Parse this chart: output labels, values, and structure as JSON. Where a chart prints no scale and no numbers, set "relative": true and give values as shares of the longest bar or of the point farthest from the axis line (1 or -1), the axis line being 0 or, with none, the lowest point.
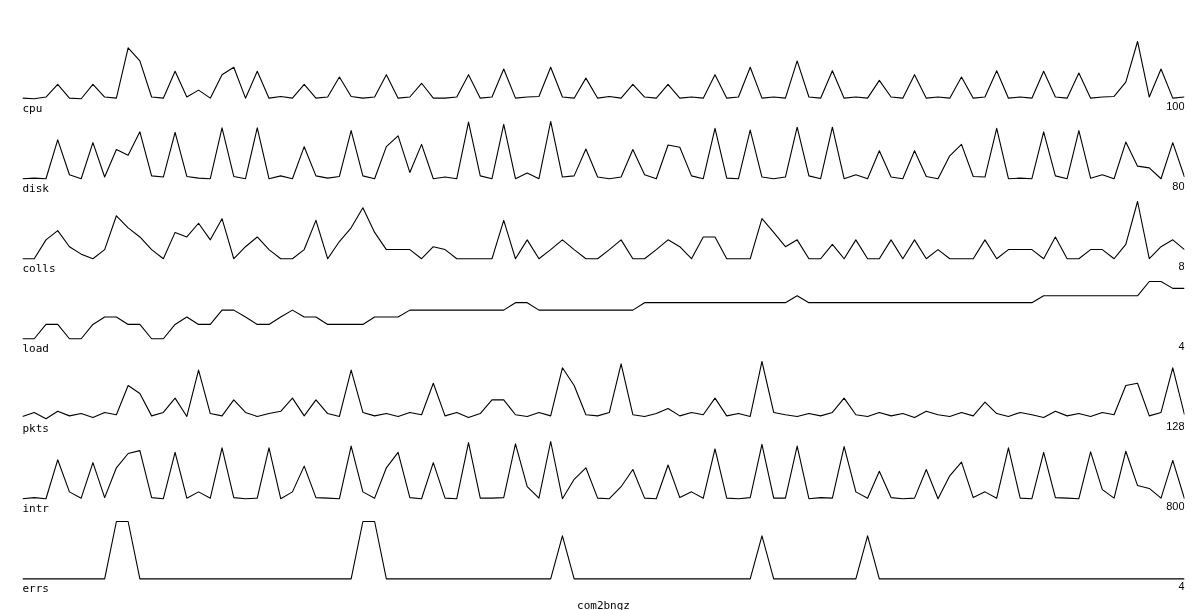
{
  "chart_data": [
    {
      "type": "line",
      "relative": true,
      "color": "#000000",
      "grid": false,
      "annotations": [
        "cpu",
        "100"
      ],
      "categories": [
        null,
        null,
        null,
        null,
        null,
        null,
        null,
        null,
        null,
        null,
        null,
        null,
        null,
        null,
        null,
        null,
        null,
        null,
        null,
        null,
        null,
        null,
        null,
        null,
        null,
        null,
        null,
        null,
        null,
        null,
        null,
        null,
        null,
        null,
        null,
        null,
        null,
        null,
        null,
        null,
        null,
        null,
        null,
        null,
        null,
        null,
        null,
        null,
        null,
        null,
        null,
        null,
        null,
        null,
        null,
        null,
        null,
        null,
        null,
        null,
        null,
        null,
        null,
        null,
        null,
        null,
        null,
        null,
        null,
        null,
        null,
        null,
        null,
        null,
        null,
        null,
        null,
        null,
        null,
        null,
        null,
        null,
        null,
        null,
        null,
        null,
        null,
        null,
        null,
        null,
        null,
        null,
        null,
        null,
        null,
        null,
        null,
        null,
        null,
        null
      ],
      "values": [
        0.01,
        0,
        0.03,
        0.25,
        0.01,
        0,
        0.25,
        0.03,
        0.01,
        0.89,
        0.66,
        0.03,
        0.01,
        0.48,
        0.03,
        0.15,
        0.01,
        0.42,
        0.55,
        0.01,
        0.48,
        0.01,
        0.04,
        0.01,
        0.25,
        0.01,
        0.03,
        0.38,
        0.04,
        0.01,
        0.03,
        0.42,
        0.01,
        0.03,
        0.27,
        0.01,
        0.01,
        0.03,
        0.42,
        0.01,
        0.03,
        0.52,
        0.01,
        0.03,
        0.04,
        0.55,
        0.03,
        0.01,
        0.36,
        0.01,
        0.04,
        0.01,
        0.25,
        0.03,
        0.01,
        0.25,
        0.01,
        0.03,
        0.01,
        0.42,
        0.01,
        0.03,
        0.55,
        0.01,
        0.03,
        0.01,
        0.66,
        0.03,
        0.01,
        0.49,
        0.01,
        0.03,
        0.01,
        0.32,
        0.03,
        0.01,
        0.42,
        0.01,
        0.03,
        0.01,
        0.38,
        0.01,
        0.03,
        0.49,
        0.01,
        0.03,
        0.01,
        0.48,
        0.03,
        0.01,
        0.45,
        0.01,
        0.03,
        0.04,
        0.29,
        1,
        0.03,
        0.52,
        0.01,
        0.03
      ]
    },
    {
      "type": "line",
      "relative": true,
      "color": "#000000",
      "grid": false,
      "annotations": [
        "disk",
        "80"
      ],
      "categories": [
        null,
        null,
        null,
        null,
        null,
        null,
        null,
        null,
        null,
        null,
        null,
        null,
        null,
        null,
        null,
        null,
        null,
        null,
        null,
        null,
        null,
        null,
        null,
        null,
        null,
        null,
        null,
        null,
        null,
        null,
        null,
        null,
        null,
        null,
        null,
        null,
        null,
        null,
        null,
        null,
        null,
        null,
        null,
        null,
        null,
        null,
        null,
        null,
        null,
        null,
        null,
        null,
        null,
        null,
        null,
        null,
        null,
        null,
        null,
        null,
        null,
        null,
        null,
        null,
        null,
        null,
        null,
        null,
        null,
        null,
        null,
        null,
        null,
        null,
        null,
        null,
        null,
        null,
        null,
        null,
        null,
        null,
        null,
        null,
        null,
        null,
        null,
        null,
        null,
        null,
        null,
        null,
        null,
        null,
        null,
        null,
        null,
        null,
        null,
        null
      ],
      "values": [
        0,
        0.01,
        0,
        0.68,
        0.07,
        0,
        0.63,
        0.03,
        0.51,
        0.41,
        0.82,
        0.05,
        0.03,
        0.81,
        0.04,
        0.01,
        0,
        0.89,
        0.04,
        0,
        0.89,
        0,
        0.05,
        0,
        0.56,
        0.05,
        0.01,
        0.04,
        0.84,
        0.05,
        0,
        0.56,
        0.75,
        0.11,
        0.6,
        0,
        0.03,
        0,
        0.99,
        0.05,
        0,
        0.95,
        0,
        0.1,
        0,
        1,
        0.03,
        0.05,
        0.52,
        0.03,
        0,
        0.03,
        0.51,
        0.07,
        0,
        0.59,
        0.55,
        0.05,
        0,
        0.88,
        0.01,
        0,
        0.85,
        0.03,
        0,
        0.03,
        0.9,
        0.05,
        0,
        0.9,
        0,
        0.07,
        0,
        0.49,
        0.03,
        0,
        0.49,
        0.04,
        0,
        0.4,
        0.6,
        0.04,
        0.03,
        0.88,
        0,
        0.01,
        0,
        0.82,
        0.05,
        0,
        0.84,
        0.01,
        0.07,
        0,
        0.64,
        0.22,
        0.19,
        0,
        0.63,
        0.03
      ]
    },
    {
      "type": "line",
      "relative": true,
      "color": "#000000",
      "grid": false,
      "annotations": [
        "colls",
        "8"
      ],
      "categories": [
        null,
        null,
        null,
        null,
        null,
        null,
        null,
        null,
        null,
        null,
        null,
        null,
        null,
        null,
        null,
        null,
        null,
        null,
        null,
        null,
        null,
        null,
        null,
        null,
        null,
        null,
        null,
        null,
        null,
        null,
        null,
        null,
        null,
        null,
        null,
        null,
        null,
        null,
        null,
        null,
        null,
        null,
        null,
        null,
        null,
        null,
        null,
        null,
        null,
        null,
        null,
        null,
        null,
        null,
        null,
        null,
        null,
        null,
        null,
        null,
        null,
        null,
        null,
        null,
        null,
        null,
        null,
        null,
        null,
        null,
        null,
        null,
        null,
        null,
        null,
        null,
        null,
        null,
        null,
        null,
        null,
        null,
        null,
        null,
        null,
        null,
        null,
        null,
        null,
        null,
        null,
        null,
        null,
        null,
        null,
        null,
        null,
        null,
        null,
        null
      ],
      "values": [
        0,
        0,
        0.33,
        0.49,
        0.21,
        0.08,
        0,
        0.16,
        0.75,
        0.54,
        0.38,
        0.16,
        0,
        0.46,
        0.38,
        0.62,
        0.33,
        0.7,
        0,
        0.21,
        0.38,
        0.16,
        0,
        0,
        0.16,
        0.67,
        0,
        0.3,
        0.54,
        0.89,
        0.46,
        0.16,
        0.16,
        0.16,
        0,
        0.21,
        0.16,
        0,
        0,
        0,
        0,
        0.67,
        0,
        0.33,
        0,
        0.16,
        0.33,
        0.16,
        0,
        0,
        0.16,
        0.33,
        0,
        0,
        0.16,
        0.33,
        0.21,
        0,
        0.38,
        0.38,
        0,
        0,
        0,
        0.7,
        0.46,
        0.21,
        0.33,
        0,
        0,
        0.25,
        0,
        0.33,
        0,
        0,
        0.33,
        0,
        0.33,
        0,
        0.16,
        0,
        0,
        0,
        0.33,
        0,
        0.16,
        0.16,
        0.16,
        0,
        0.38,
        0,
        0,
        0.16,
        0.16,
        0,
        0.25,
        1,
        0,
        0.21,
        0.33,
        0.16
      ]
    },
    {
      "type": "line",
      "relative": true,
      "color": "#000000",
      "grid": false,
      "annotations": [
        "load",
        "4"
      ],
      "categories": [
        null,
        null,
        null,
        null,
        null,
        null,
        null,
        null,
        null,
        null,
        null,
        null,
        null,
        null,
        null,
        null,
        null,
        null,
        null,
        null,
        null,
        null,
        null,
        null,
        null,
        null,
        null,
        null,
        null,
        null,
        null,
        null,
        null,
        null,
        null,
        null,
        null,
        null,
        null,
        null,
        null,
        null,
        null,
        null,
        null,
        null,
        null,
        null,
        null,
        null,
        null,
        null,
        null,
        null,
        null,
        null,
        null,
        null,
        null,
        null,
        null,
        null,
        null,
        null,
        null,
        null,
        null,
        null,
        null,
        null,
        null,
        null,
        null,
        null,
        null,
        null,
        null,
        null,
        null,
        null,
        null,
        null,
        null,
        null,
        null,
        null,
        null,
        null,
        null,
        null,
        null,
        null,
        null,
        null,
        null,
        null,
        null,
        null,
        null,
        null
      ],
      "values": [
        0,
        0,
        0.25,
        0.25,
        0,
        0,
        0.25,
        0.38,
        0.38,
        0.25,
        0.25,
        0,
        0,
        0.25,
        0.38,
        0.25,
        0.25,
        0.5,
        0.5,
        0.38,
        0.25,
        0.25,
        0.38,
        0.5,
        0.38,
        0.38,
        0.25,
        0.25,
        0.25,
        0.25,
        0.38,
        0.38,
        0.38,
        0.5,
        0.5,
        0.5,
        0.5,
        0.5,
        0.5,
        0.5,
        0.5,
        0.5,
        0.63,
        0.63,
        0.5,
        0.5,
        0.5,
        0.5,
        0.5,
        0.5,
        0.5,
        0.5,
        0.5,
        0.63,
        0.63,
        0.63,
        0.63,
        0.63,
        0.63,
        0.63,
        0.63,
        0.63,
        0.63,
        0.63,
        0.63,
        0.63,
        0.75,
        0.63,
        0.63,
        0.63,
        0.63,
        0.63,
        0.63,
        0.63,
        0.63,
        0.63,
        0.63,
        0.63,
        0.63,
        0.63,
        0.63,
        0.63,
        0.63,
        0.63,
        0.63,
        0.63,
        0.63,
        0.75,
        0.75,
        0.75,
        0.75,
        0.75,
        0.75,
        0.75,
        0.75,
        0.75,
        1,
        1,
        0.88,
        0.88
      ]
    },
    {
      "type": "line",
      "relative": true,
      "color": "#000000",
      "grid": false,
      "annotations": [
        "pkts",
        "128"
      ],
      "categories": [
        null,
        null,
        null,
        null,
        null,
        null,
        null,
        null,
        null,
        null,
        null,
        null,
        null,
        null,
        null,
        null,
        null,
        null,
        null,
        null,
        null,
        null,
        null,
        null,
        null,
        null,
        null,
        null,
        null,
        null,
        null,
        null,
        null,
        null,
        null,
        null,
        null,
        null,
        null,
        null,
        null,
        null,
        null,
        null,
        null,
        null,
        null,
        null,
        null,
        null,
        null,
        null,
        null,
        null,
        null,
        null,
        null,
        null,
        null,
        null,
        null,
        null,
        null,
        null,
        null,
        null,
        null,
        null,
        null,
        null,
        null,
        null,
        null,
        null,
        null,
        null,
        null,
        null,
        null,
        null,
        null,
        null,
        null,
        null,
        null,
        null,
        null,
        null,
        null,
        null,
        null,
        null,
        null,
        null,
        null,
        null,
        null,
        null,
        null,
        null
      ],
      "values": [
        0.04,
        0.11,
        0,
        0.13,
        0.05,
        0.09,
        0.02,
        0.11,
        0.07,
        0.58,
        0.44,
        0.05,
        0.11,
        0.36,
        0.04,
        0.85,
        0.09,
        0.05,
        0.33,
        0.11,
        0.04,
        0.09,
        0.13,
        0.36,
        0.05,
        0.33,
        0.09,
        0.04,
        0.85,
        0.11,
        0.05,
        0.09,
        0.04,
        0.11,
        0.07,
        0.62,
        0.05,
        0.11,
        0.02,
        0.09,
        0.33,
        0.33,
        0.07,
        0.04,
        0.11,
        0.05,
        0.89,
        0.58,
        0.07,
        0.05,
        0.11,
        0.96,
        0.07,
        0.04,
        0.09,
        0.18,
        0.05,
        0.11,
        0.07,
        0.36,
        0.05,
        0.09,
        0.04,
        1,
        0.11,
        0.07,
        0.04,
        0.09,
        0.05,
        0.11,
        0.36,
        0.07,
        0.04,
        0.11,
        0.05,
        0.09,
        0.02,
        0.13,
        0.07,
        0.04,
        0.11,
        0.05,
        0.29,
        0.09,
        0.04,
        0.11,
        0.07,
        0.02,
        0.13,
        0.05,
        0.09,
        0.04,
        0.11,
        0.07,
        0.58,
        0.62,
        0.05,
        0.11,
        0.89,
        0.07
      ]
    },
    {
      "type": "line",
      "relative": true,
      "color": "#000000",
      "grid": false,
      "annotations": [
        "intr",
        "800"
      ],
      "categories": [
        null,
        null,
        null,
        null,
        null,
        null,
        null,
        null,
        null,
        null,
        null,
        null,
        null,
        null,
        null,
        null,
        null,
        null,
        null,
        null,
        null,
        null,
        null,
        null,
        null,
        null,
        null,
        null,
        null,
        null,
        null,
        null,
        null,
        null,
        null,
        null,
        null,
        null,
        null,
        null,
        null,
        null,
        null,
        null,
        null,
        null,
        null,
        null,
        null,
        null,
        null,
        null,
        null,
        null,
        null,
        null,
        null,
        null,
        null,
        null,
        null,
        null,
        null,
        null,
        null,
        null,
        null,
        null,
        null,
        null,
        null,
        null,
        null,
        null,
        null,
        null,
        null,
        null,
        null,
        null,
        null,
        null,
        null,
        null,
        null,
        null,
        null,
        null,
        null,
        null,
        null,
        null,
        null,
        null,
        null,
        null,
        null,
        null,
        null,
        null
      ],
      "values": [
        0,
        0.02,
        0,
        0.68,
        0.12,
        0.01,
        0.63,
        0.02,
        0.54,
        0.79,
        0.84,
        0.02,
        0,
        0.81,
        0.01,
        0.12,
        0.01,
        0.89,
        0.02,
        0,
        0.01,
        0.89,
        0,
        0.12,
        0.57,
        0.02,
        0.01,
        0,
        0.92,
        0.12,
        0.01,
        0.54,
        0.81,
        0.02,
        0,
        0.63,
        0.01,
        0,
        0.98,
        0.01,
        0.01,
        0.02,
        0.96,
        0.21,
        0.01,
        1,
        0,
        0.34,
        0.54,
        0.01,
        0,
        0.21,
        0.51,
        0.01,
        0,
        0.59,
        0.02,
        0.12,
        0.01,
        0.87,
        0.01,
        0,
        0.02,
        0.95,
        0.01,
        0.01,
        0.92,
        0,
        0.02,
        0.01,
        0.91,
        0.12,
        0.01,
        0.48,
        0.02,
        0,
        0.01,
        0.51,
        0,
        0.4,
        0.64,
        0.02,
        0.12,
        0.01,
        0.89,
        0.01,
        0,
        0.81,
        0.02,
        0.01,
        0,
        0.82,
        0.16,
        0.01,
        0.83,
        0.23,
        0.18,
        0.01,
        0.67,
        0
      ]
    },
    {
      "type": "line",
      "relative": true,
      "color": "#000000",
      "grid": false,
      "annotations": [
        "errs",
        "4",
        "com2bngz"
      ],
      "categories": [
        null,
        null,
        null,
        null,
        null,
        null,
        null,
        null,
        null,
        null,
        null,
        null,
        null,
        null,
        null,
        null,
        null,
        null,
        null,
        null,
        null,
        null,
        null,
        null,
        null,
        null,
        null,
        null,
        null,
        null,
        null,
        null,
        null,
        null,
        null,
        null,
        null,
        null,
        null,
        null,
        null,
        null,
        null,
        null,
        null,
        null,
        null,
        null,
        null,
        null,
        null,
        null,
        null,
        null,
        null,
        null,
        null,
        null,
        null,
        null,
        null,
        null,
        null,
        null,
        null,
        null,
        null,
        null,
        null,
        null,
        null,
        null,
        null,
        null,
        null,
        null,
        null,
        null,
        null,
        null,
        null,
        null,
        null,
        null,
        null,
        null,
        null,
        null,
        null,
        null,
        null,
        null,
        null,
        null,
        null,
        null,
        null,
        null,
        null,
        null
      ],
      "values": [
        0,
        0,
        0,
        0,
        0,
        0,
        0,
        0,
        1,
        1,
        0,
        0,
        0,
        0,
        0,
        0,
        0,
        0,
        0,
        0,
        0,
        0,
        0,
        0,
        0,
        0,
        0,
        0,
        0,
        1,
        1,
        0,
        0,
        0,
        0,
        0,
        0,
        0,
        0,
        0,
        0,
        0,
        0,
        0,
        0,
        0,
        0.75,
        0,
        0,
        0,
        0,
        0,
        0,
        0,
        0,
        0,
        0,
        0,
        0,
        0,
        0,
        0,
        0,
        0.75,
        0,
        0,
        0,
        0,
        0,
        0,
        0,
        0,
        0.75,
        0,
        0,
        0,
        0,
        0,
        0,
        0,
        0,
        0,
        0,
        0,
        0,
        0,
        0,
        0,
        0,
        0,
        0,
        0,
        0,
        0,
        0,
        0,
        0,
        0,
        0,
        0
      ]
    }
  ]
}
